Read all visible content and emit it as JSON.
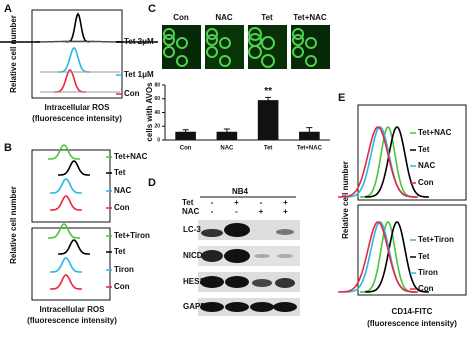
{
  "panels": {
    "A": {
      "label": "A",
      "ylabel": "Relative cell number",
      "xlabel": [
        "Intracellular ROS",
        "(fluorescence intensity)"
      ],
      "legend": [
        "Tet 2μM",
        "Tet 1μM",
        "Con"
      ]
    },
    "B": {
      "label": "B",
      "ylabel": "Relative cell number",
      "xlabel": [
        "Intracellular ROS",
        "(fluorescence intensity)"
      ],
      "legend_top": [
        "Tet+NAC",
        "Tet",
        "NAC",
        "Con"
      ],
      "legend_bottom": [
        "Tet+Tiron",
        "Tet",
        "Tiron",
        "Con"
      ]
    },
    "C": {
      "label": "C",
      "columns": [
        "Con",
        "NAC",
        "Tet",
        "Tet+NAC"
      ]
    },
    "D": {
      "label": "D",
      "cell_line": "NB4",
      "treatments": [
        {
          "name": "Tet",
          "signs": [
            "-",
            "+",
            "-",
            "+"
          ]
        },
        {
          "name": "NAC",
          "signs": [
            "-",
            "-",
            "+",
            "+"
          ]
        }
      ],
      "proteins": [
        "LC-3",
        "NICD",
        "HES1",
        "GAPDH"
      ]
    },
    "E": {
      "label": "E",
      "ylabel": "Relative cell number",
      "xlabel": [
        "CD14-FITC",
        "(fluorescence intensity)"
      ],
      "legend_top": [
        "Tet+NAC",
        "Tet",
        "NAC",
        "Con"
      ],
      "legend_bottom": [
        "Tet+Tiron",
        "Tet",
        "Tiron",
        "Con"
      ]
    }
  },
  "chart_data": {
    "type": "bar",
    "ylabel": "cells with AVOs",
    "categories": [
      "Con",
      "NAC",
      "Tet",
      "Tet+NAC"
    ],
    "values": [
      12,
      12,
      58,
      12
    ],
    "errors": [
      3,
      4,
      4,
      6
    ],
    "color": "#111111",
    "ylim": [
      0,
      80
    ],
    "yticks": [
      0,
      20,
      40,
      60,
      80
    ],
    "annotation": "**",
    "annotation_index": 2
  }
}
